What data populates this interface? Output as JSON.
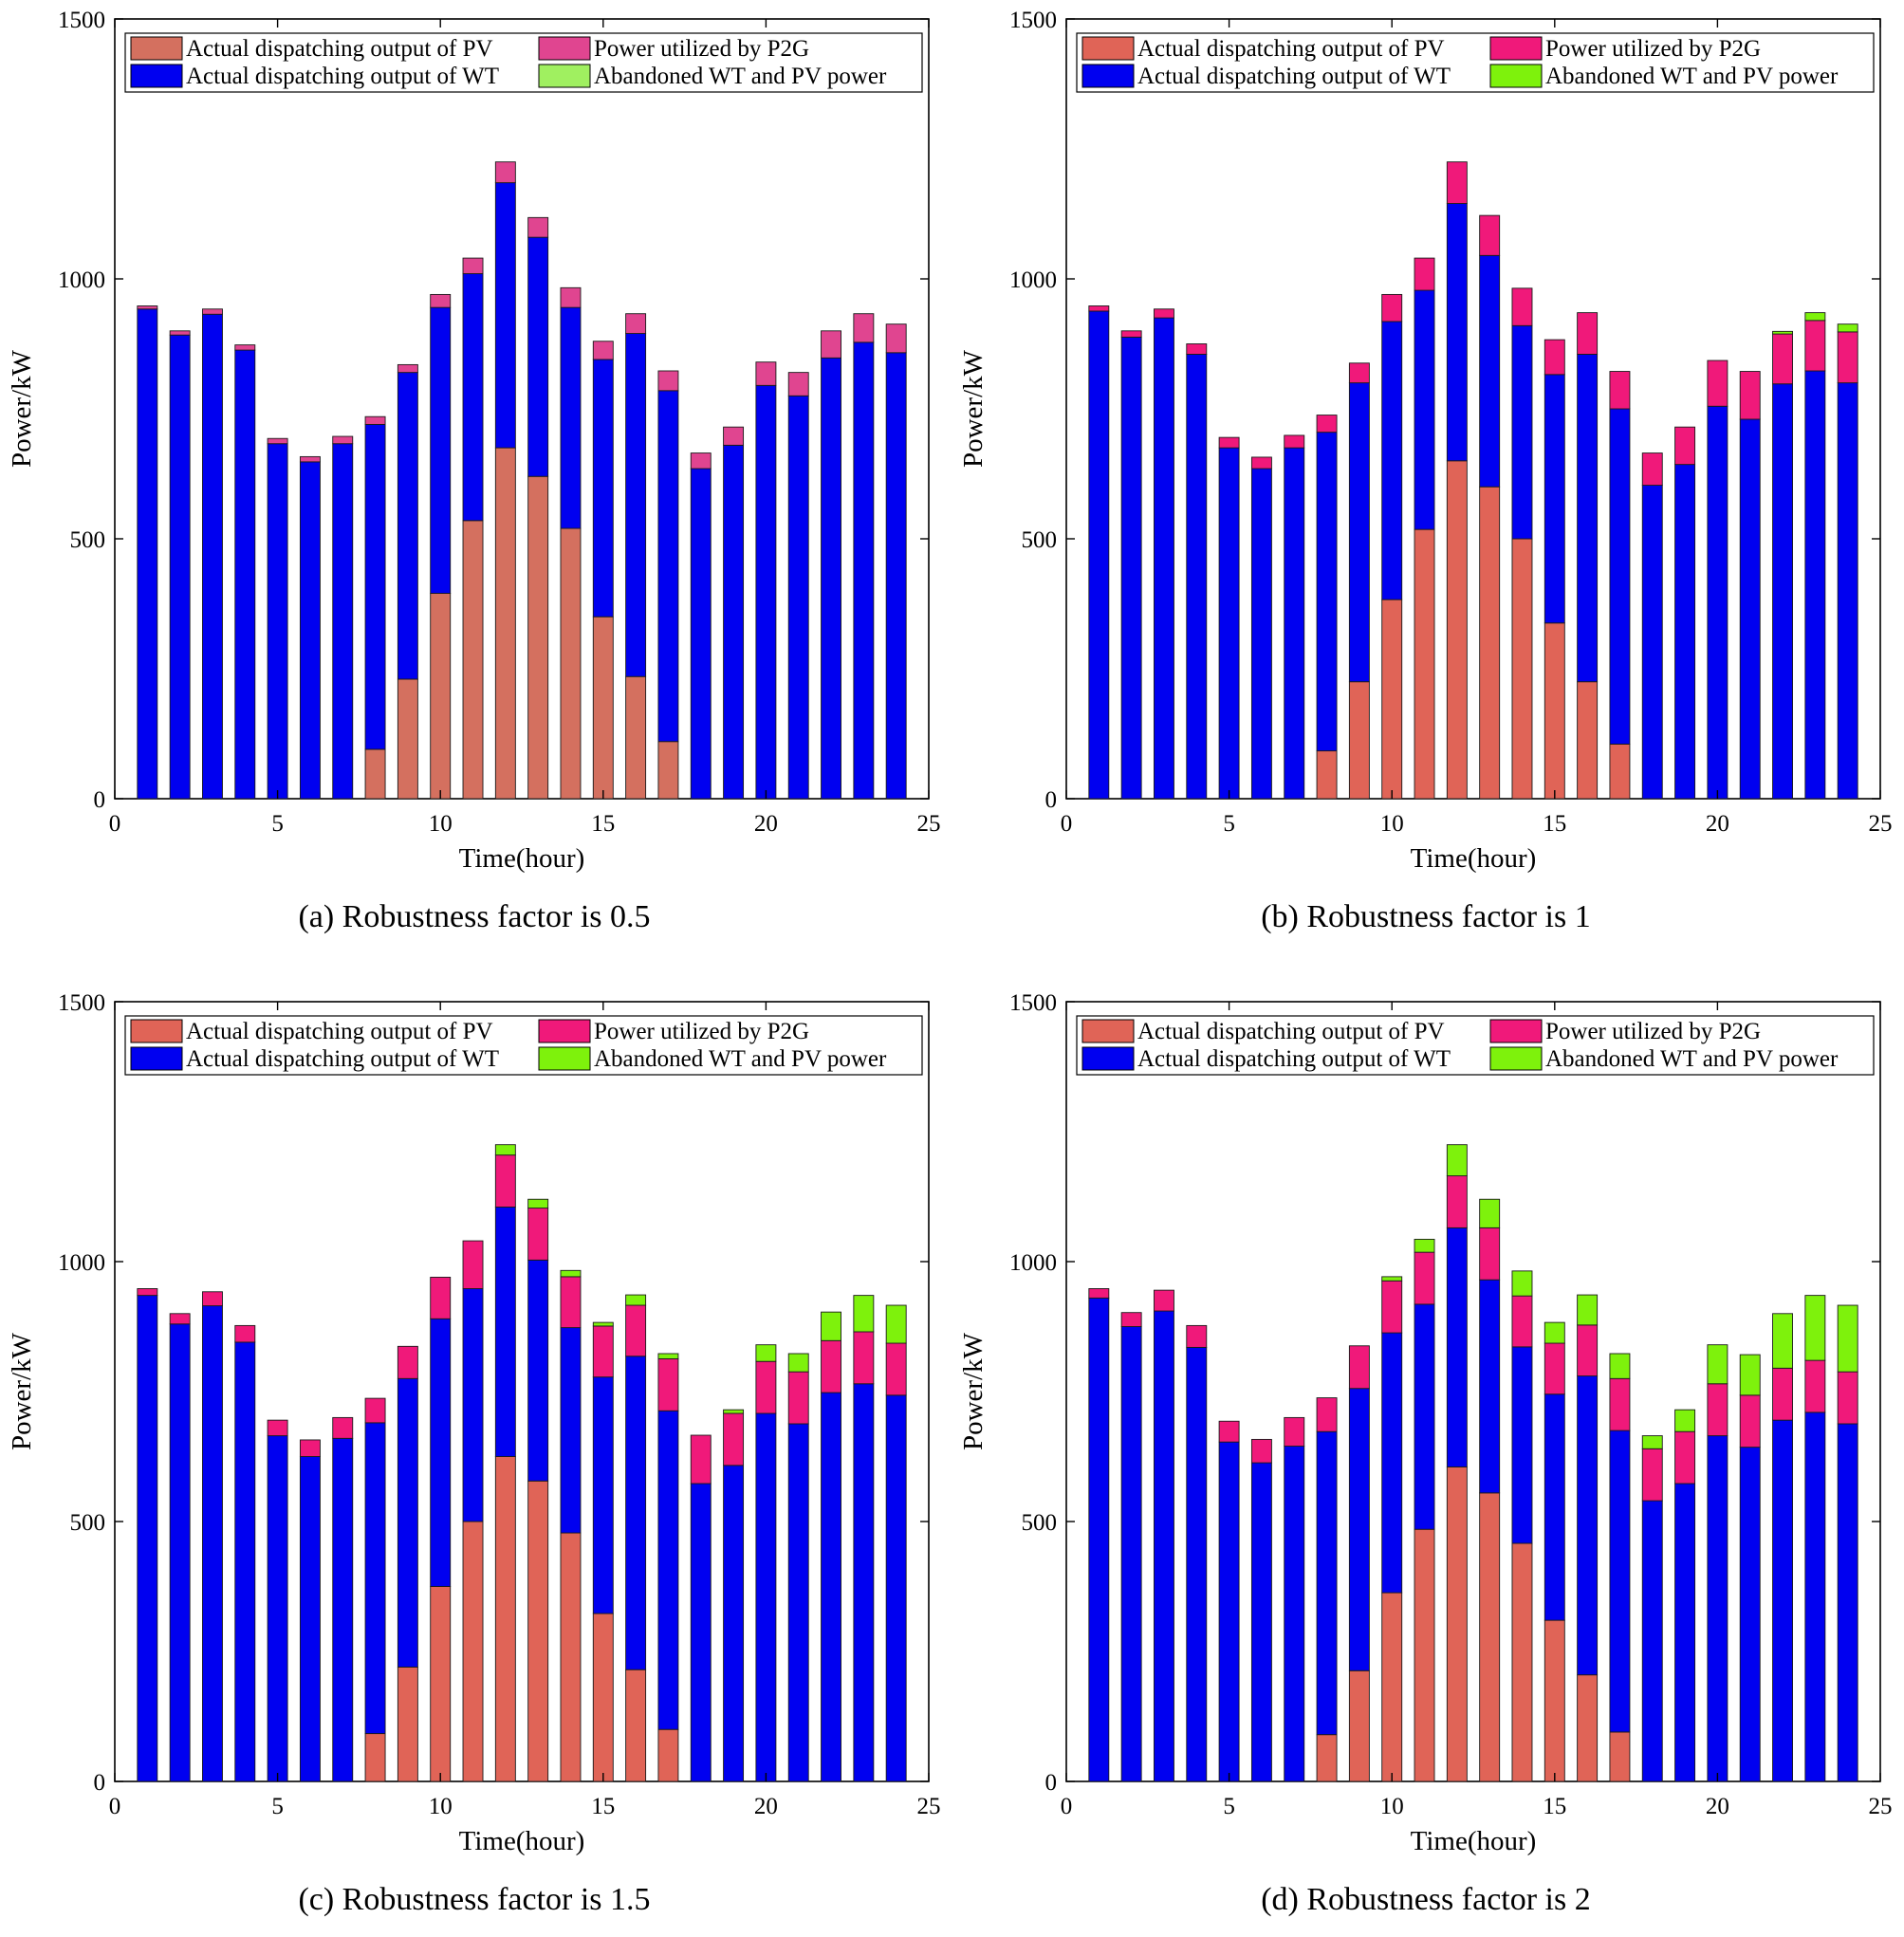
{
  "figure": {
    "captions": [
      "(a)  Robustness factor is 0.5",
      "(b)  Robustness factor is 1",
      "(c)  Robustness factor is 1.5",
      "(d)  Robustness factor is 2"
    ]
  },
  "colors": {
    "pv": "#e06457",
    "pv_a": "#d4705f",
    "wt": "#0000f0",
    "p2g": "#f0197a",
    "p2g_a": "#e04590",
    "abandoned": "#7ef20c",
    "abandoned_a": "#a0f060"
  },
  "chart_data": [
    {
      "type": "bar",
      "stacked": true,
      "title": "(a)  Robustness factor is 0.5",
      "xlabel": "Time(hour)",
      "ylabel": "Power/kW",
      "xlim": [
        0,
        25
      ],
      "ylim": [
        0,
        1500
      ],
      "xticks": [
        0,
        5,
        10,
        15,
        20,
        25
      ],
      "yticks": [
        0,
        500,
        1000,
        1500
      ],
      "legend": [
        "Actual dispatching output of PV",
        "Power utilized by P2G",
        "Actual dispatching output of WT",
        "Abandoned WT and PV power"
      ],
      "legend_position": "top",
      "categories": [
        1,
        2,
        3,
        4,
        5,
        6,
        7,
        8,
        9,
        10,
        11,
        12,
        13,
        14,
        15,
        16,
        17,
        18,
        19,
        20,
        21,
        22,
        23,
        24
      ],
      "series": [
        {
          "name": "Actual dispatching output of PV",
          "values": [
            0,
            0,
            0,
            0,
            0,
            0,
            0,
            95,
            230,
            395,
            535,
            675,
            620,
            520,
            350,
            235,
            110,
            0,
            0,
            0,
            0,
            0,
            0,
            0
          ]
        },
        {
          "name": "Actual dispatching output of WT",
          "values": [
            942,
            892,
            932,
            863,
            683,
            648,
            683,
            625,
            590,
            550,
            475,
            510,
            460,
            425,
            495,
            660,
            675,
            635,
            680,
            795,
            775,
            848,
            878,
            858
          ]
        },
        {
          "name": "Power utilized by P2G",
          "values": [
            6,
            8,
            10,
            10,
            10,
            10,
            14,
            15,
            15,
            25,
            30,
            40,
            38,
            38,
            35,
            38,
            38,
            30,
            35,
            45,
            45,
            52,
            55,
            55
          ]
        },
        {
          "name": "Abandoned WT and PV power",
          "values": [
            0,
            0,
            0,
            0,
            0,
            0,
            0,
            0,
            0,
            0,
            0,
            0,
            0,
            0,
            0,
            0,
            0,
            0,
            0,
            0,
            0,
            0,
            0,
            0
          ]
        }
      ]
    },
    {
      "type": "bar",
      "stacked": true,
      "title": "(b)  Robustness factor is 1",
      "xlabel": "Time(hour)",
      "ylabel": "Power/kW",
      "xlim": [
        0,
        25
      ],
      "ylim": [
        0,
        1500
      ],
      "xticks": [
        0,
        5,
        10,
        15,
        20,
        25
      ],
      "yticks": [
        0,
        500,
        1000,
        1500
      ],
      "legend": [
        "Actual dispatching output of PV",
        "Power utilized by P2G",
        "Actual dispatching output of WT",
        "Abandoned WT and PV power"
      ],
      "legend_position": "top",
      "categories": [
        1,
        2,
        3,
        4,
        5,
        6,
        7,
        8,
        9,
        10,
        11,
        12,
        13,
        14,
        15,
        16,
        17,
        18,
        19,
        20,
        21,
        22,
        23,
        24
      ],
      "series": [
        {
          "name": "Actual dispatching output of PV",
          "values": [
            0,
            0,
            0,
            0,
            0,
            0,
            0,
            92,
            225,
            383,
            518,
            650,
            600,
            500,
            338,
            225,
            105,
            0,
            0,
            0,
            0,
            0,
            0,
            0
          ]
        },
        {
          "name": "Actual dispatching output of WT",
          "values": [
            938,
            888,
            925,
            855,
            675,
            635,
            675,
            613,
            575,
            535,
            460,
            495,
            445,
            410,
            478,
            630,
            645,
            603,
            643,
            755,
            730,
            798,
            823,
            800
          ]
        },
        {
          "name": "Power utilized by P2G",
          "values": [
            10,
            12,
            17,
            20,
            20,
            22,
            24,
            33,
            38,
            52,
            62,
            80,
            77,
            72,
            67,
            80,
            72,
            62,
            72,
            88,
            92,
            96,
            97,
            98
          ]
        },
        {
          "name": "Abandoned WT and PV power",
          "values": [
            0,
            0,
            0,
            0,
            0,
            0,
            0,
            0,
            0,
            0,
            0,
            0,
            0,
            0,
            0,
            0,
            0,
            0,
            0,
            0,
            0,
            5,
            15,
            15
          ]
        }
      ]
    },
    {
      "type": "bar",
      "stacked": true,
      "title": "(c)  Robustness factor is 1.5",
      "xlabel": "Time(hour)",
      "ylabel": "Power/kW",
      "xlim": [
        0,
        25
      ],
      "ylim": [
        0,
        1500
      ],
      "xticks": [
        0,
        5,
        10,
        15,
        20,
        25
      ],
      "yticks": [
        0,
        500,
        1000,
        1500
      ],
      "legend": [
        "Actual dispatching output of PV",
        "Power utilized by P2G",
        "Actual dispatching output of WT",
        "Abandoned WT and PV power"
      ],
      "legend_position": "top",
      "categories": [
        1,
        2,
        3,
        4,
        5,
        6,
        7,
        8,
        9,
        10,
        11,
        12,
        13,
        14,
        15,
        16,
        17,
        18,
        19,
        20,
        21,
        22,
        23,
        24
      ],
      "series": [
        {
          "name": "Actual dispatching output of PV",
          "values": [
            0,
            0,
            0,
            0,
            0,
            0,
            0,
            92,
            220,
            375,
            500,
            625,
            578,
            478,
            323,
            215,
            100,
            0,
            0,
            0,
            0,
            0,
            0,
            0
          ]
        },
        {
          "name": "Actual dispatching output of WT",
          "values": [
            935,
            880,
            915,
            845,
            665,
            625,
            660,
            598,
            555,
            515,
            448,
            480,
            425,
            395,
            455,
            603,
            613,
            573,
            608,
            708,
            688,
            748,
            765,
            743
          ]
        },
        {
          "name": "Power utilized by P2G",
          "values": [
            13,
            20,
            27,
            32,
            30,
            32,
            40,
            47,
            62,
            80,
            92,
            100,
            100,
            98,
            98,
            98,
            100,
            93,
            100,
            100,
            100,
            100,
            100,
            100
          ]
        },
        {
          "name": "Abandoned WT and PV power",
          "values": [
            0,
            0,
            0,
            0,
            0,
            0,
            0,
            0,
            0,
            0,
            0,
            20,
            17,
            12,
            7,
            20,
            10,
            0,
            7,
            32,
            35,
            55,
            70,
            73
          ]
        }
      ]
    },
    {
      "type": "bar",
      "stacked": true,
      "title": "(d)  Robustness factor is 2",
      "xlabel": "Time(hour)",
      "ylabel": "Power/kW",
      "xlim": [
        0,
        25
      ],
      "ylim": [
        0,
        1500
      ],
      "xticks": [
        0,
        5,
        10,
        15,
        20,
        25
      ],
      "yticks": [
        0,
        500,
        1000,
        1500
      ],
      "legend": [
        "Actual dispatching output of PV",
        "Power utilized by P2G",
        "Actual dispatching output of WT",
        "Abandoned WT and PV power"
      ],
      "legend_position": "top",
      "categories": [
        1,
        2,
        3,
        4,
        5,
        6,
        7,
        8,
        9,
        10,
        11,
        12,
        13,
        14,
        15,
        16,
        17,
        18,
        19,
        20,
        21,
        22,
        23,
        24
      ],
      "series": [
        {
          "name": "Actual dispatching output of PV",
          "values": [
            0,
            0,
            0,
            0,
            0,
            0,
            0,
            90,
            213,
            363,
            485,
            605,
            555,
            458,
            310,
            205,
            95,
            0,
            0,
            0,
            0,
            0,
            0,
            0
          ]
        },
        {
          "name": "Actual dispatching output of WT",
          "values": [
            930,
            875,
            905,
            835,
            653,
            613,
            645,
            583,
            543,
            500,
            433,
            460,
            410,
            378,
            435,
            575,
            580,
            540,
            573,
            665,
            643,
            695,
            710,
            688
          ]
        },
        {
          "name": "Power utilized by P2G",
          "values": [
            18,
            27,
            40,
            42,
            40,
            45,
            55,
            65,
            82,
            100,
            100,
            100,
            100,
            98,
            98,
            98,
            100,
            100,
            100,
            100,
            100,
            100,
            100,
            100
          ]
        },
        {
          "name": "Abandoned WT and PV power",
          "values": [
            0,
            0,
            0,
            0,
            0,
            0,
            0,
            0,
            0,
            8,
            25,
            60,
            55,
            48,
            40,
            58,
            48,
            25,
            42,
            75,
            78,
            105,
            125,
            128
          ]
        }
      ]
    }
  ]
}
